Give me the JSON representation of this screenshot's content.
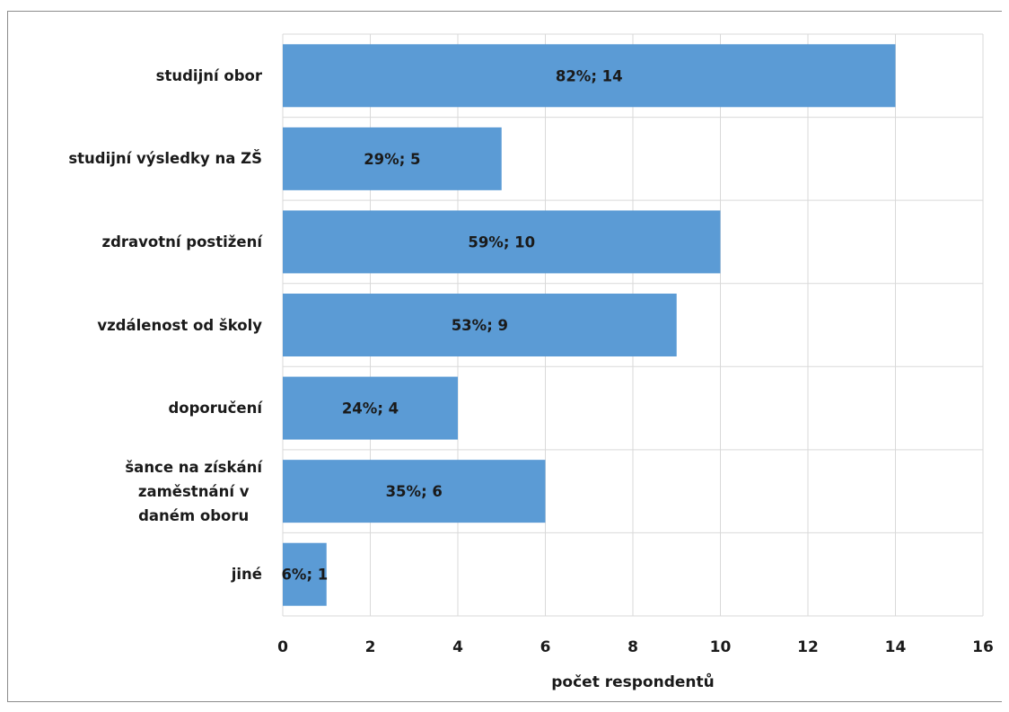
{
  "chart_data": {
    "type": "bar",
    "orientation": "horizontal",
    "categories": [
      "studijní obor",
      "studijní výsledky na ZŠ",
      "zdravotní postižení",
      "vzdálenost od školy",
      "doporučení",
      "šance na získání\nzaměstnání v\ndaném oboru",
      "jiné"
    ],
    "values": [
      14,
      5,
      10,
      9,
      4,
      6,
      1
    ],
    "data_labels": [
      "82%; 14",
      "29%; 5",
      "59%; 10",
      "53%; 9",
      "24%; 4",
      "35%; 6",
      "6%; 1"
    ],
    "title": "",
    "xlabel": "počet respondentů",
    "ylabel": "",
    "xlim": [
      0,
      16
    ],
    "x_ticks": [
      0,
      2,
      4,
      6,
      8,
      10,
      12,
      14,
      16
    ],
    "grid": true,
    "legend": "none",
    "bar_color": "#5b9bd5",
    "grid_color": "#d9d9d9"
  }
}
